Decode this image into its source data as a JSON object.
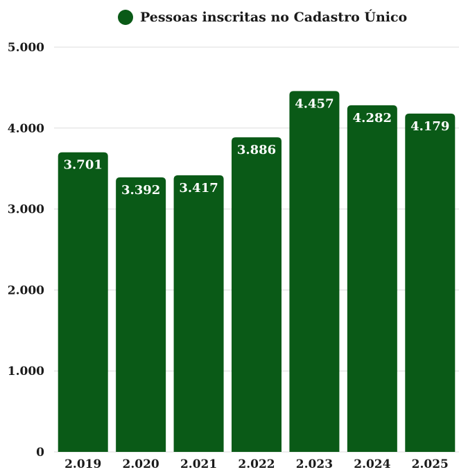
{
  "chart_data": {
    "type": "bar",
    "legend": "Pessoas inscritas no Cadastro Único",
    "legend_position": "top-center",
    "color": "#0a5a17",
    "grid": true,
    "categories": [
      "2.019",
      "2.020",
      "2.021",
      "2.022",
      "2.023",
      "2.024",
      "2.025"
    ],
    "values": [
      3701,
      3392,
      3417,
      3886,
      4457,
      4282,
      4179
    ],
    "value_labels": [
      "3.701",
      "3.392",
      "3.417",
      "3.886",
      "4.457",
      "4.282",
      "4.179"
    ],
    "ylim": [
      0,
      5000
    ],
    "yticks": [
      0,
      1000,
      2000,
      3000,
      4000,
      5000
    ],
    "ytick_labels": [
      "0",
      "1.000",
      "2.000",
      "3.000",
      "4.000",
      "5.000"
    ]
  }
}
